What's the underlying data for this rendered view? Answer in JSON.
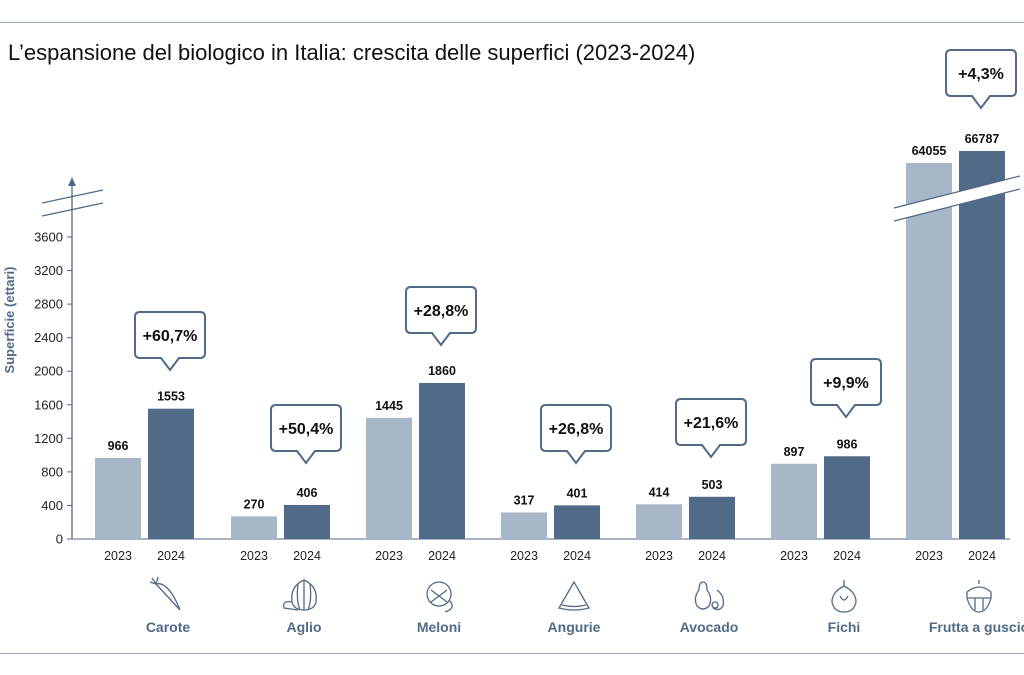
{
  "chart_data": {
    "type": "bar",
    "title": "L’espansione del biologico in Italia: crescita delle superfici (2023-2024)",
    "ylabel": "Superficie (ettari)",
    "xlabel": "",
    "ylim": [
      0,
      3600
    ],
    "yticks": [
      0,
      400,
      800,
      1200,
      1600,
      2000,
      2400,
      2800,
      3200,
      3600
    ],
    "axis_break": true,
    "categories": [
      "Carote",
      "Aglio",
      "Meloni",
      "Angurie",
      "Avocado",
      "Fichi",
      "Frutta a guscio"
    ],
    "series": [
      {
        "name": "2023",
        "color": "#a8b7c8",
        "values": [
          966,
          270,
          1445,
          317,
          414,
          897,
          64055
        ]
      },
      {
        "name": "2024",
        "color": "#506a87",
        "values": [
          1553,
          406,
          1860,
          401,
          503,
          986,
          66787
        ]
      }
    ],
    "growth_labels": [
      "+60,7%",
      "+50,4%",
      "+28,8%",
      "+26,8%",
      "+21,6%",
      "+9,9%",
      "+4,3%"
    ],
    "icons": [
      "carrot-icon",
      "garlic-icon",
      "melon-icon",
      "watermelon-icon",
      "avocado-icon",
      "fig-icon",
      "nut-icon"
    ]
  }
}
